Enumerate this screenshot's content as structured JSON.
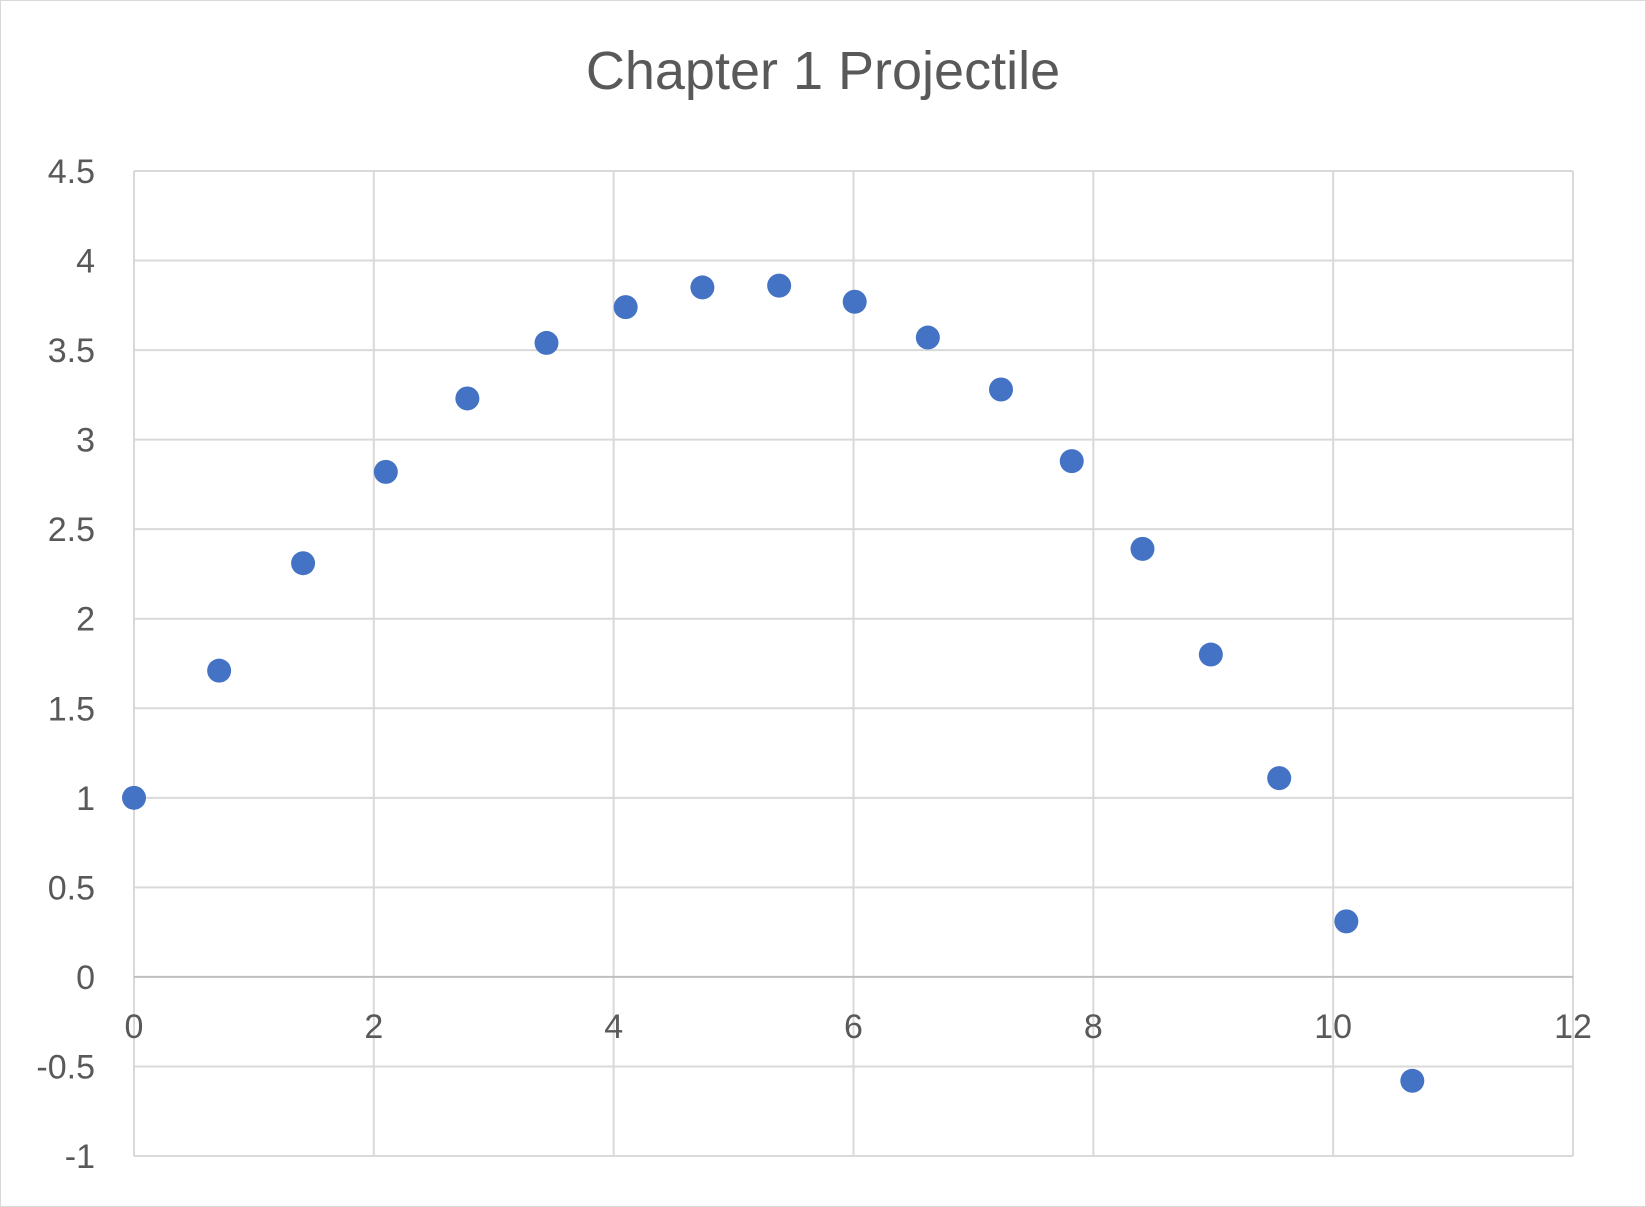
{
  "chart_data": {
    "type": "scatter",
    "title": "Chapter 1 Projectile",
    "xlabel": "",
    "ylabel": "",
    "xlim": [
      0,
      12
    ],
    "ylim": [
      -1,
      4.5
    ],
    "x_ticks": [
      "0",
      "2",
      "4",
      "6",
      "8",
      "10",
      "12"
    ],
    "y_ticks": [
      "-1",
      "-0.5",
      "0",
      "0.5",
      "1",
      "1.5",
      "2",
      "2.5",
      "3",
      "3.5",
      "4",
      "4.5"
    ],
    "grid": true,
    "legend": "none",
    "marker_color": "#4472c4",
    "series": [
      {
        "x": [
          0,
          0.71,
          1.41,
          2.1,
          2.78,
          3.44,
          4.1,
          4.74,
          5.38,
          6.01,
          6.62,
          7.23,
          7.82,
          8.41,
          8.98,
          9.55,
          10.11,
          10.66
        ],
        "y": [
          1.0,
          1.71,
          2.31,
          2.82,
          3.23,
          3.54,
          3.74,
          3.85,
          3.86,
          3.77,
          3.57,
          3.28,
          2.88,
          2.39,
          1.8,
          1.11,
          0.31,
          -0.58
        ]
      }
    ]
  }
}
